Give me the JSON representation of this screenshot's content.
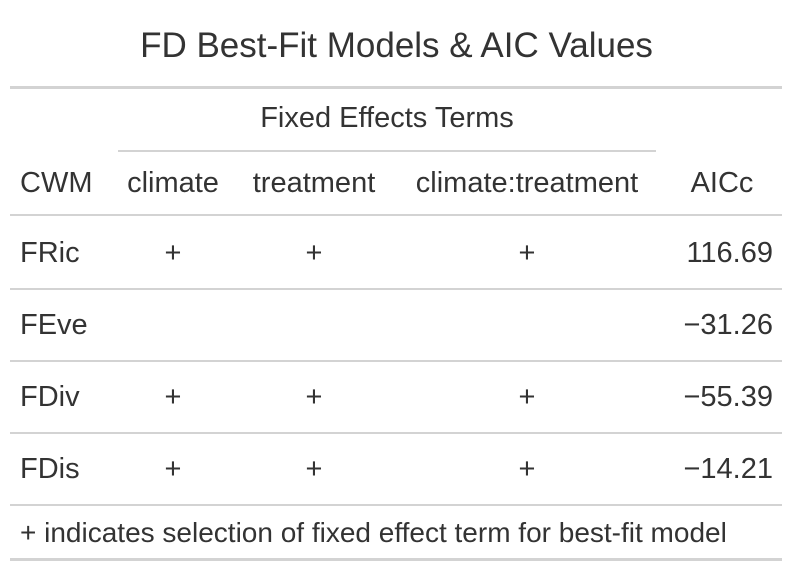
{
  "title": "FD Best-Fit Models & AIC Values",
  "spanner": "Fixed Effects Terms",
  "columns": {
    "cwm": "CWM",
    "climate": "climate",
    "treatment": "treatment",
    "interaction": "climate:treatment",
    "aicc": "AICc"
  },
  "rows": [
    {
      "cwm": "FRic",
      "climate": "+",
      "treatment": "+",
      "interaction": "+",
      "aicc": "116.69"
    },
    {
      "cwm": "FEve",
      "climate": "",
      "treatment": "",
      "interaction": "",
      "aicc": "−31.26"
    },
    {
      "cwm": "FDiv",
      "climate": "+",
      "treatment": "+",
      "interaction": "+",
      "aicc": "−55.39"
    },
    {
      "cwm": "FDis",
      "climate": "+",
      "treatment": "+",
      "interaction": "+",
      "aicc": "−14.21"
    }
  ],
  "footnote": "+ indicates selection of fixed effect term for best-fit model",
  "colors": {
    "text": "#333333",
    "rule": "#d3d3d3"
  }
}
